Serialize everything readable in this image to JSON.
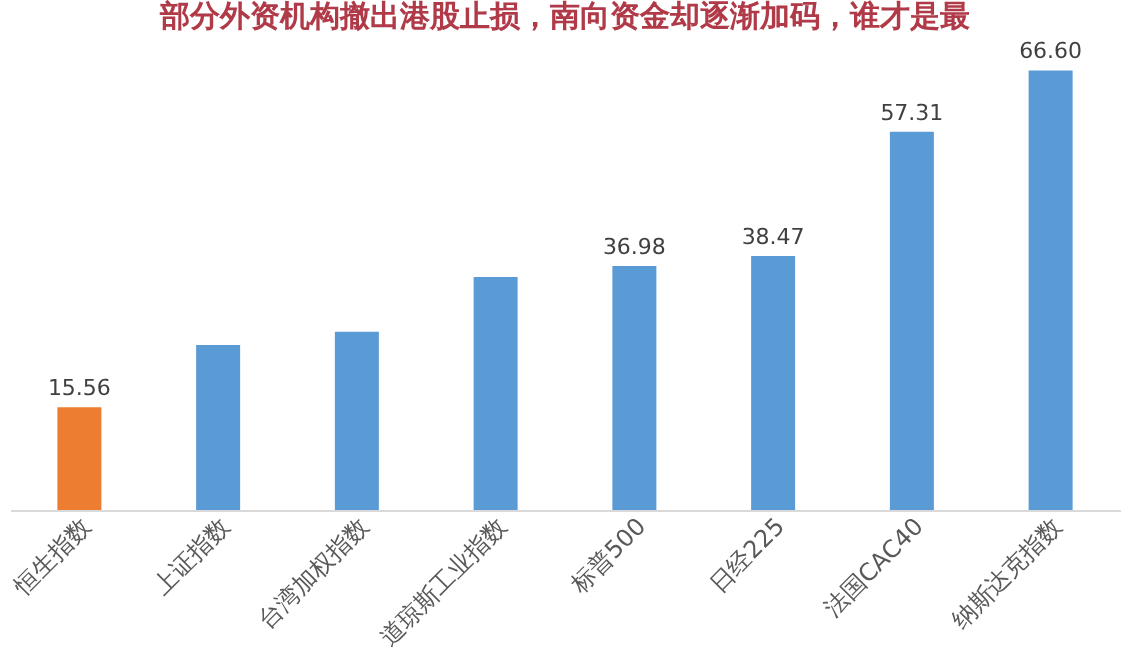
{
  "chart_data": {
    "type": "bar",
    "title": "部分外资机构撤出港股止损，南向资金却逐渐加码，谁才是最",
    "categories": [
      "恒生指数",
      "上证指数",
      "台湾加权指数",
      "道琼斯工业指数",
      "标普500",
      "日经225",
      "法国CAC40",
      "纳斯达克指数"
    ],
    "values": [
      15.56,
      25,
      27,
      35.3,
      36.98,
      38.47,
      57.31,
      66.6
    ],
    "value_labels": [
      "15.56",
      null,
      null,
      null,
      "36.98",
      "38.47",
      "57.31",
      "66.60"
    ],
    "colors": [
      "#ed7d31",
      "#5b9bd5",
      "#5b9bd5",
      "#5b9bd5",
      "#5b9bd5",
      "#5b9bd5",
      "#5b9bd5",
      "#5b9bd5"
    ],
    "data_labels": false
  }
}
